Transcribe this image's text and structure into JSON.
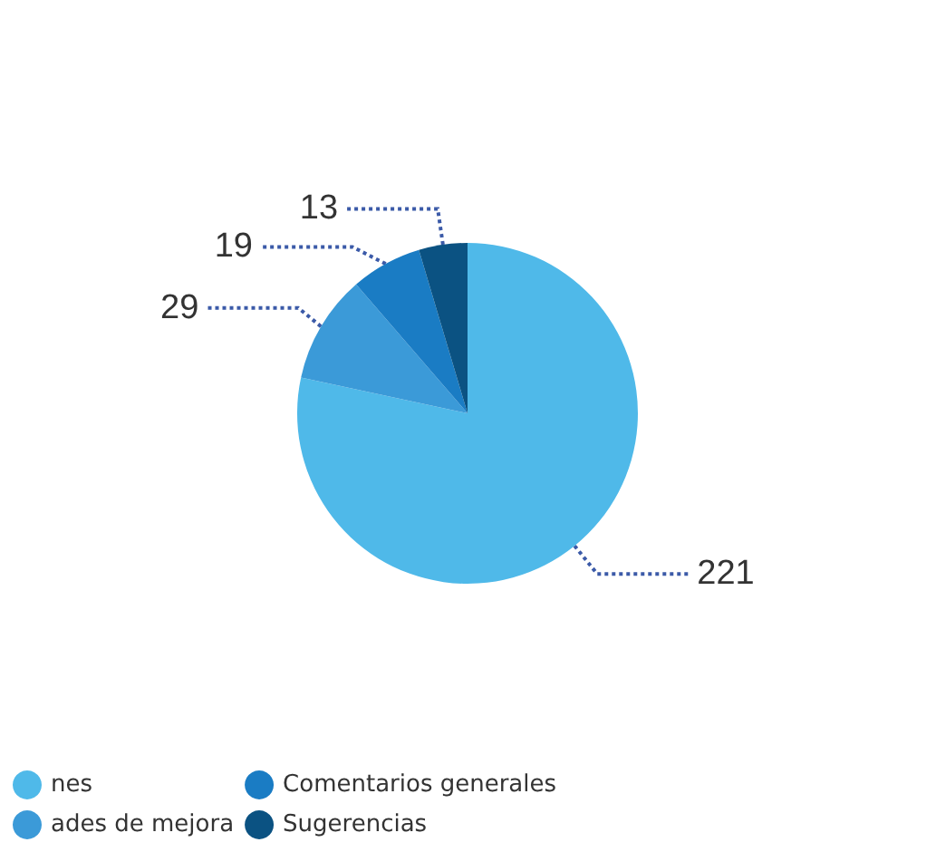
{
  "chart_data": {
    "type": "pie",
    "categories": [
      "nes",
      "ades de mejora",
      "Comentarios generales",
      "Sugerencias"
    ],
    "values": [
      221,
      29,
      19,
      13
    ],
    "colors": [
      "#4fb9e9",
      "#3b9ad8",
      "#1a7cc4",
      "#0b5282"
    ],
    "data_labels": true,
    "legend": "bottom left"
  }
}
